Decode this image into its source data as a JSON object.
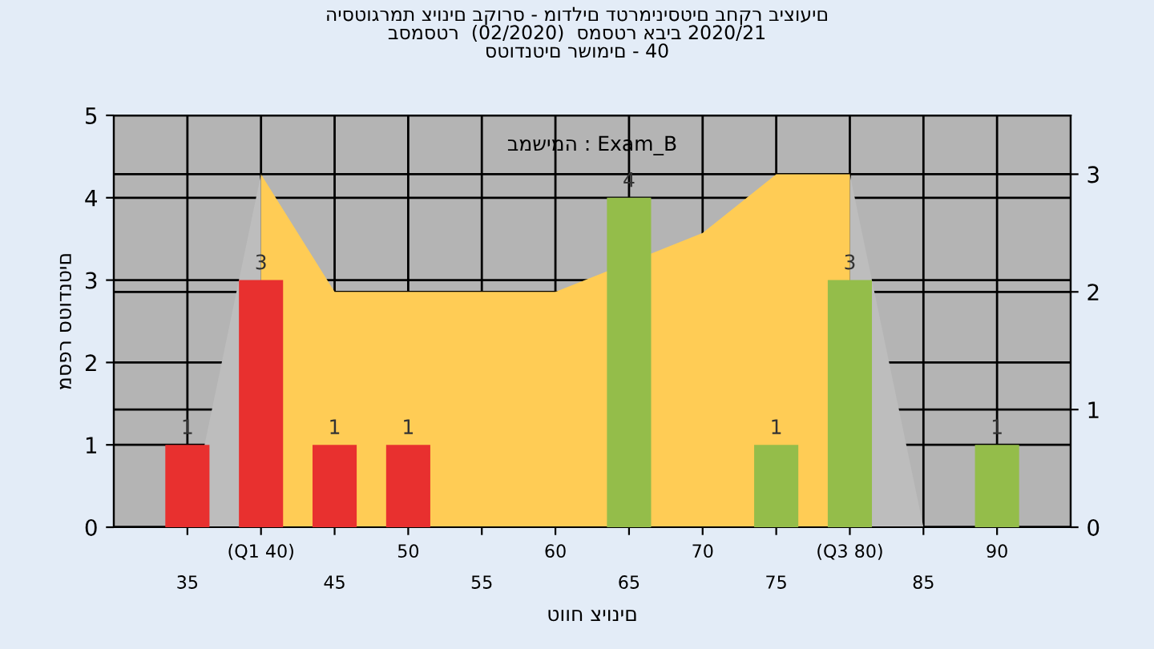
{
  "chart_data": {
    "type": "bar",
    "title": "היסטוגרמת ציונים בקורס - מודלים דטרמיניסטים בחקר ביצועים\nבסמסטר  (02/2020)  סמסטר אביב 2020/21\nסטודנטים רשומים - 40",
    "xlabel": "טווח ציונים",
    "ylabel": "מספר סטודנטים",
    "annotations": [
      "במשימה : Exam_B"
    ],
    "categories": [
      "35",
      "(Q1 40)",
      "45",
      "50",
      "55",
      "60",
      "65",
      "70",
      "75",
      "(Q3 80)",
      "85",
      "90"
    ],
    "series": [
      {
        "type": "area",
        "axis": "y2",
        "color": "#bdbdbd",
        "values": [
          0,
          3,
          null,
          null,
          null,
          null,
          null,
          null,
          null,
          null,
          null,
          null
        ]
      },
      {
        "type": "area",
        "axis": "y2",
        "color": "#bdbdbd",
        "values": [
          null,
          null,
          null,
          null,
          null,
          null,
          null,
          null,
          null,
          3,
          0,
          null
        ]
      },
      {
        "type": "area",
        "axis": "y2",
        "color": "#ffcc55",
        "values": [
          null,
          3,
          2,
          2,
          2,
          2,
          null,
          2.5,
          3,
          3,
          null,
          null
        ]
      },
      {
        "values": [
          1,
          3,
          1,
          1,
          0,
          0,
          4,
          0,
          1,
          3,
          0,
          1
        ],
        "value_labels": [
          "1",
          "3",
          "1",
          "1",
          null,
          null,
          "4",
          null,
          "1",
          "3",
          null,
          "1"
        ],
        "colors": [
          "#e8302f",
          "#e8302f",
          "#e8302f",
          "#e8302f",
          "#e8302f",
          "#e8302f",
          "#94bd4a",
          "#94bd4a",
          "#94bd4a",
          "#94bd4a",
          "#94bd4a",
          "#94bd4a"
        ]
      }
    ],
    "ylim": [
      0,
      5
    ],
    "yticks": [
      0,
      1,
      2,
      3,
      4,
      5
    ],
    "y2lim": [
      0,
      3.5
    ],
    "y2ticks": [
      0,
      1,
      2,
      3
    ],
    "grid": true,
    "legend": false
  }
}
